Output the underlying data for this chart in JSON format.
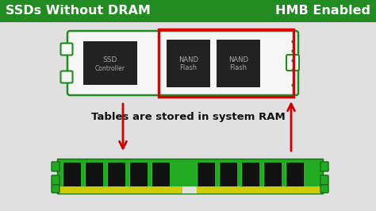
{
  "bg_color": "#e0e0e0",
  "header_color": "#228b22",
  "header_text_left": "SSDs Without DRAM",
  "header_text_right": "HMB Enabled",
  "header_text_color": "#ffffff",
  "annotation_text": "Tables are stored in system RAM",
  "annotation_color": "#111111",
  "arrow_color": "#cc0000",
  "ssd_board_color": "#f5f5f5",
  "ssd_board_edge_color": "#228b22",
  "ssd_chip_color": "#222222",
  "ssd_chip_text_color": "#aaaaaa",
  "red_box_color": "#dd0000",
  "ram_board_color": "#22aa22",
  "ram_board_dark": "#1a8a1a",
  "ram_chip_color": "#111111",
  "ram_contact_color": "#cccc00",
  "ram_gap_color": "#e0e0e0"
}
